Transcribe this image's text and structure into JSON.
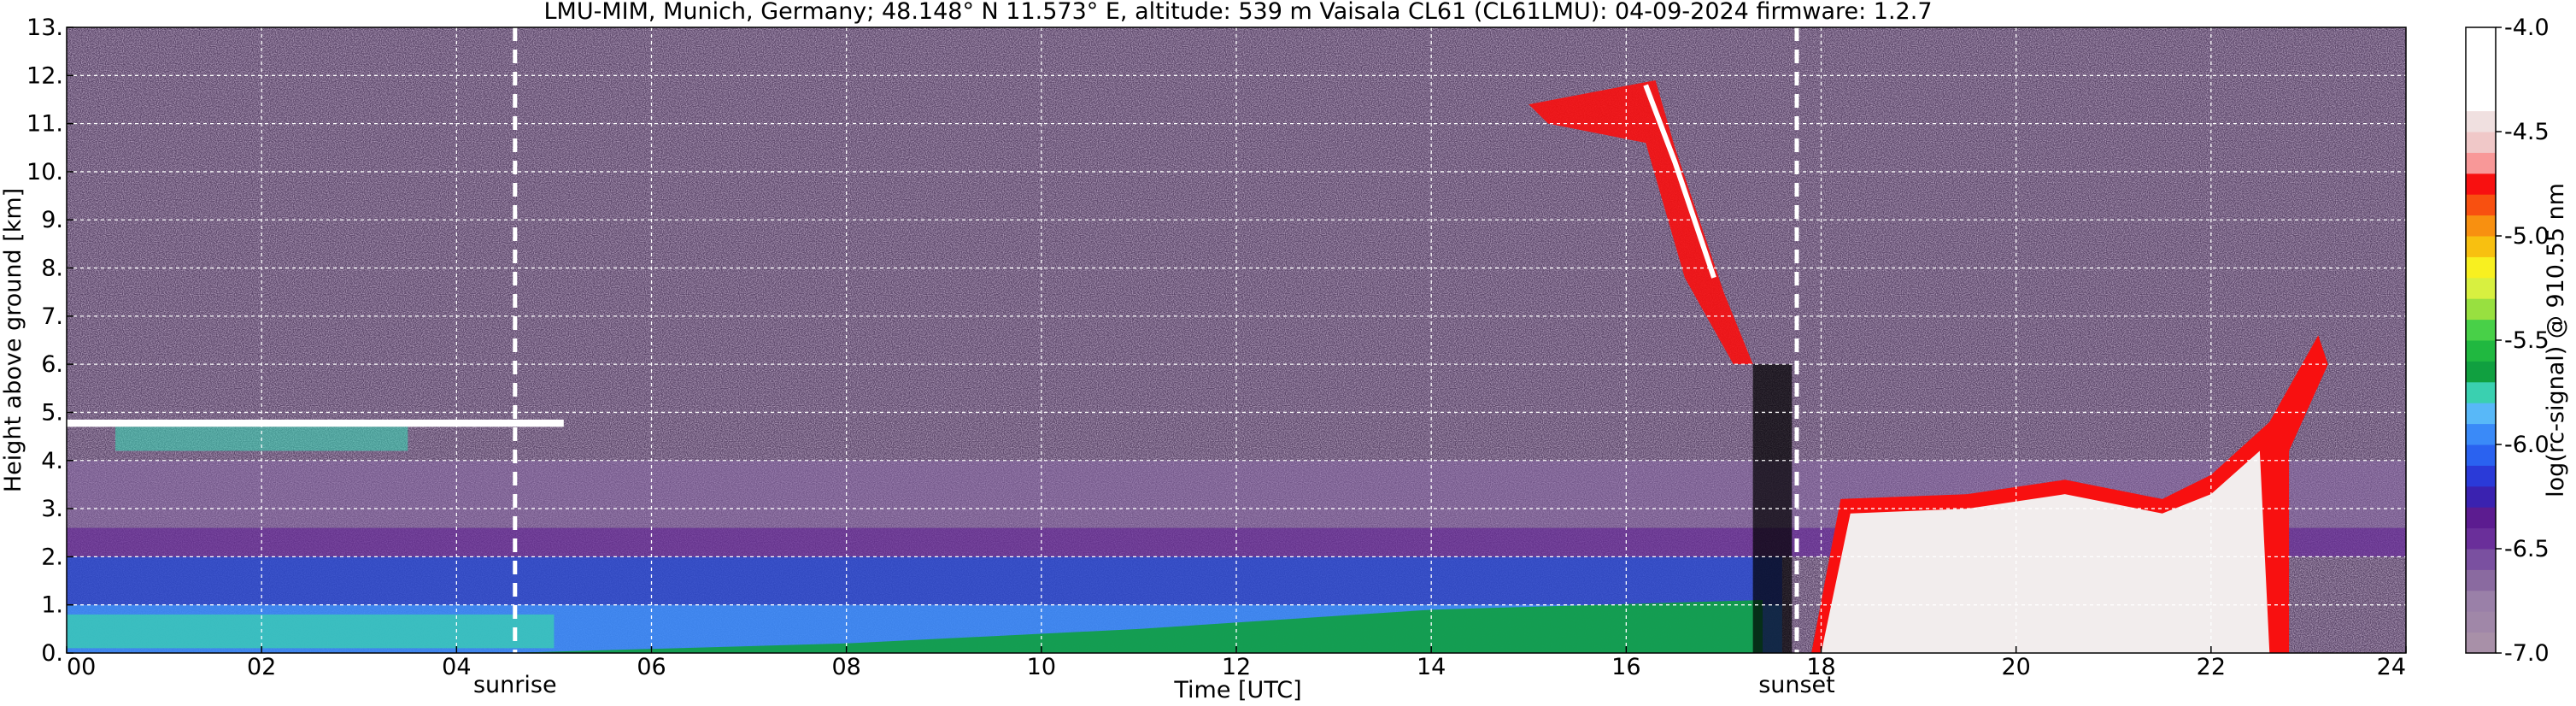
{
  "chart_data": {
    "type": "heatmap",
    "title": "LMU-MIM, Munich, Germany; 48.148° N 11.573° E, altitude: 539 m    Vaisala CL61 (CL61LMU): 04-09-2024    firmware: 1.2.7",
    "xlabel": "Time [UTC]",
    "ylabel": "Height above ground [km]",
    "xlim": [
      0,
      24
    ],
    "ylim": [
      0,
      13
    ],
    "x_ticks": [
      0,
      2,
      4,
      6,
      8,
      10,
      12,
      14,
      16,
      18,
      20,
      22,
      24
    ],
    "x_tick_labels": [
      "00",
      "02",
      "04",
      "06",
      "08",
      "10",
      "12",
      "14",
      "16",
      "18",
      "20",
      "22",
      "24"
    ],
    "y_ticks": [
      0,
      1,
      2,
      3,
      4,
      5,
      6,
      7,
      8,
      9,
      10,
      11,
      12,
      13
    ],
    "y_tick_labels": [
      "0.",
      "1.",
      "2.",
      "3.",
      "4.",
      "5.",
      "6.",
      "7.",
      "8.",
      "9.",
      "10.",
      "11.",
      "12.",
      "13."
    ],
    "grid": true,
    "colorbar": {
      "label": "log(rc-signal) @ 910.55 nm",
      "range": [
        -7.0,
        -4.0
      ],
      "ticks": [
        -7.0,
        -6.5,
        -6.0,
        -5.5,
        -5.0,
        -4.5,
        -4.0
      ],
      "tick_labels": [
        "-7.0",
        "-6.5",
        "-6.0",
        "-5.5",
        "-5.0",
        "-4.5",
        "-4.0"
      ],
      "colors": [
        "#a890a8",
        "#a087a8",
        "#9a80a8",
        "#8a6aa0",
        "#7a50a0",
        "#6a2f9a",
        "#5c1c90",
        "#3a22b0",
        "#2a3ad8",
        "#2a62f0",
        "#3a8af8",
        "#58b8f8",
        "#3ad0b0",
        "#10a040",
        "#20b840",
        "#48d048",
        "#98e040",
        "#d8f040",
        "#f8f020",
        "#f8c010",
        "#f89010",
        "#f85010",
        "#f81010",
        "#f89898",
        "#f0c8c8",
        "#f0e0e0",
        "#ffffff",
        "#ffffff",
        "#ffffff",
        "#ffffff"
      ]
    },
    "events": [
      {
        "label": "sunrise",
        "x": 4.6
      },
      {
        "label": "sunset",
        "x": 17.75
      }
    ],
    "data_description": {
      "aerosol_layer_top_km": 2.0,
      "cirrus_layer_km": [
        9.3,
        12.0
      ],
      "low_cloud_layer_km": [
        0.0,
        3.5
      ],
      "elevated_layer_km": 4.8
    }
  }
}
